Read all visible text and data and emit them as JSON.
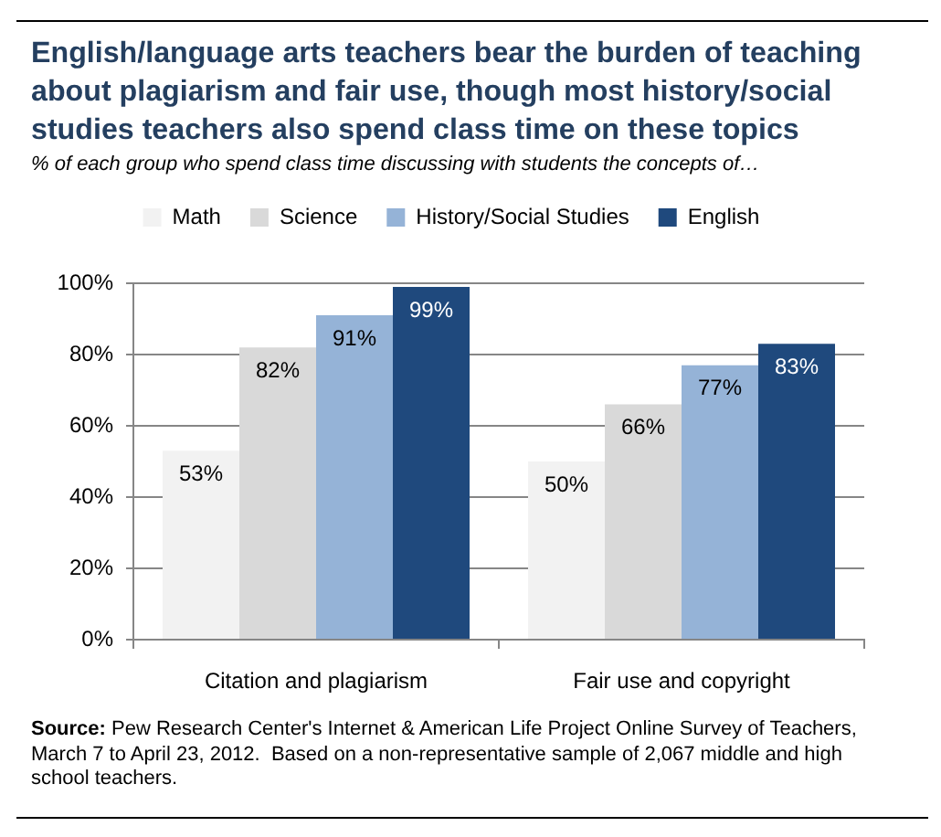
{
  "chart_data": {
    "type": "bar",
    "title": "English/language arts teachers bear the burden of teaching about plagiarism and fair use, though most history/social studies teachers also spend class time on these topics",
    "subtitle": "% of each group who spend class time discussing with students the concepts of…",
    "categories": [
      "Citation and plagiarism",
      "Fair use and copyright"
    ],
    "series": [
      {
        "name": "Math",
        "color": "#f2f2f2",
        "values": [
          53,
          50
        ],
        "value_labels": [
          "53%",
          "50%"
        ]
      },
      {
        "name": "Science",
        "color": "#d9d9d9",
        "values": [
          82,
          66
        ],
        "value_labels": [
          "82%",
          "66%"
        ]
      },
      {
        "name": "History/Social Studies",
        "color": "#95b3d7",
        "values": [
          91,
          77
        ],
        "value_labels": [
          "91%",
          "77%"
        ]
      },
      {
        "name": "English",
        "color": "#1f497d",
        "values": [
          99,
          83
        ],
        "value_labels": [
          "99%",
          "83%"
        ]
      }
    ],
    "ylim": [
      0,
      100
    ],
    "yticks": [
      {
        "value": 0,
        "label": "0%"
      },
      {
        "value": 20,
        "label": "20%"
      },
      {
        "value": 40,
        "label": "40%"
      },
      {
        "value": 60,
        "label": "60%"
      },
      {
        "value": 80,
        "label": "80%"
      },
      {
        "value": 100,
        "label": "100%"
      }
    ],
    "grid": "y",
    "legend": "top",
    "annotations": [
      "Source: Pew Research Center's Internet & American Life Project Online Survey of Teachers, March 7 to April 23, 2012.  Based on a non-representative sample of 2,067 middle and high school teachers."
    ]
  }
}
